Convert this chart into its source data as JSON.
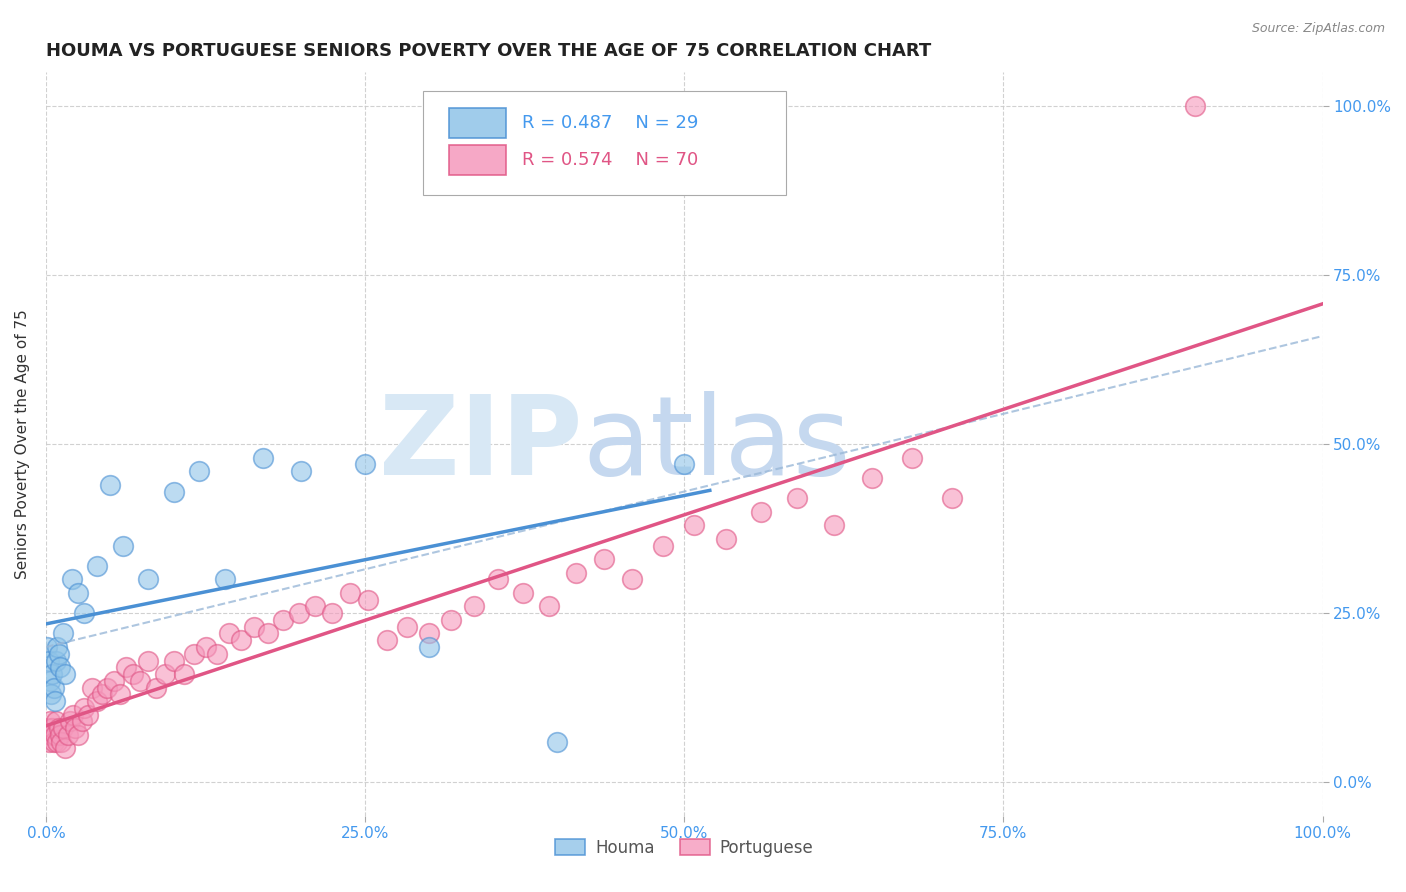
{
  "title": "HOUMA VS PORTUGUESE SENIORS POVERTY OVER THE AGE OF 75 CORRELATION CHART",
  "source": "Source: ZipAtlas.com",
  "ylabel": "Seniors Poverty Over the Age of 75",
  "houma_R": 0.487,
  "houma_N": 29,
  "portuguese_R": 0.574,
  "portuguese_N": 70,
  "houma_color": "#90c4e8",
  "portuguese_color": "#f599bc",
  "houma_edge_color": "#4a90d4",
  "portuguese_edge_color": "#e05585",
  "houma_line_color": "#4a90d4",
  "portuguese_line_color": "#e05585",
  "dashed_line_color": "#9ab8d8",
  "background_color": "#ffffff",
  "xlim": [
    0.0,
    1.0
  ],
  "ylim": [
    -0.05,
    1.05
  ],
  "houma_x": [
    0.001,
    0.002,
    0.003,
    0.004,
    0.005,
    0.006,
    0.007,
    0.008,
    0.009,
    0.01,
    0.011,
    0.013,
    0.015,
    0.02,
    0.025,
    0.03,
    0.04,
    0.05,
    0.06,
    0.08,
    0.1,
    0.12,
    0.14,
    0.17,
    0.2,
    0.25,
    0.3,
    0.4,
    0.5
  ],
  "houma_y": [
    0.2,
    0.18,
    0.15,
    0.13,
    0.16,
    0.14,
    0.12,
    0.18,
    0.2,
    0.19,
    0.17,
    0.22,
    0.16,
    0.3,
    0.28,
    0.25,
    0.32,
    0.44,
    0.35,
    0.3,
    0.43,
    0.46,
    0.3,
    0.48,
    0.46,
    0.47,
    0.2,
    0.06,
    0.47
  ],
  "portuguese_x": [
    0.001,
    0.002,
    0.003,
    0.004,
    0.005,
    0.006,
    0.007,
    0.008,
    0.009,
    0.01,
    0.011,
    0.012,
    0.013,
    0.015,
    0.017,
    0.019,
    0.021,
    0.023,
    0.025,
    0.028,
    0.03,
    0.033,
    0.036,
    0.04,
    0.044,
    0.048,
    0.053,
    0.058,
    0.063,
    0.068,
    0.074,
    0.08,
    0.086,
    0.093,
    0.1,
    0.108,
    0.116,
    0.125,
    0.134,
    0.143,
    0.153,
    0.163,
    0.174,
    0.186,
    0.198,
    0.211,
    0.224,
    0.238,
    0.252,
    0.267,
    0.283,
    0.3,
    0.317,
    0.335,
    0.354,
    0.374,
    0.394,
    0.415,
    0.437,
    0.459,
    0.483,
    0.508,
    0.533,
    0.56,
    0.588,
    0.617,
    0.647,
    0.678,
    0.71,
    0.9
  ],
  "portuguese_y": [
    0.08,
    0.06,
    0.09,
    0.07,
    0.08,
    0.06,
    0.07,
    0.09,
    0.06,
    0.08,
    0.07,
    0.06,
    0.08,
    0.05,
    0.07,
    0.09,
    0.1,
    0.08,
    0.07,
    0.09,
    0.11,
    0.1,
    0.14,
    0.12,
    0.13,
    0.14,
    0.15,
    0.13,
    0.17,
    0.16,
    0.15,
    0.18,
    0.14,
    0.16,
    0.18,
    0.16,
    0.19,
    0.2,
    0.19,
    0.22,
    0.21,
    0.23,
    0.22,
    0.24,
    0.25,
    0.26,
    0.25,
    0.28,
    0.27,
    0.21,
    0.23,
    0.22,
    0.24,
    0.26,
    0.3,
    0.28,
    0.26,
    0.31,
    0.33,
    0.3,
    0.35,
    0.38,
    0.36,
    0.4,
    0.42,
    0.38,
    0.45,
    0.48,
    0.42,
    1.0
  ],
  "xtick_positions": [
    0.0,
    0.25,
    0.5,
    0.75,
    1.0
  ],
  "xtick_labels": [
    "0.0%",
    "25.0%",
    "50.0%",
    "75.0%",
    "100.0%"
  ],
  "ytick_positions": [
    0.0,
    0.25,
    0.5,
    0.75,
    1.0
  ],
  "ytick_labels_right": [
    "0.0%",
    "25.0%",
    "50.0%",
    "75.0%",
    "100.0%"
  ],
  "grid_color": "#cccccc",
  "title_fontsize": 13,
  "axis_label_fontsize": 11,
  "tick_fontsize": 11,
  "legend_fontsize": 13
}
